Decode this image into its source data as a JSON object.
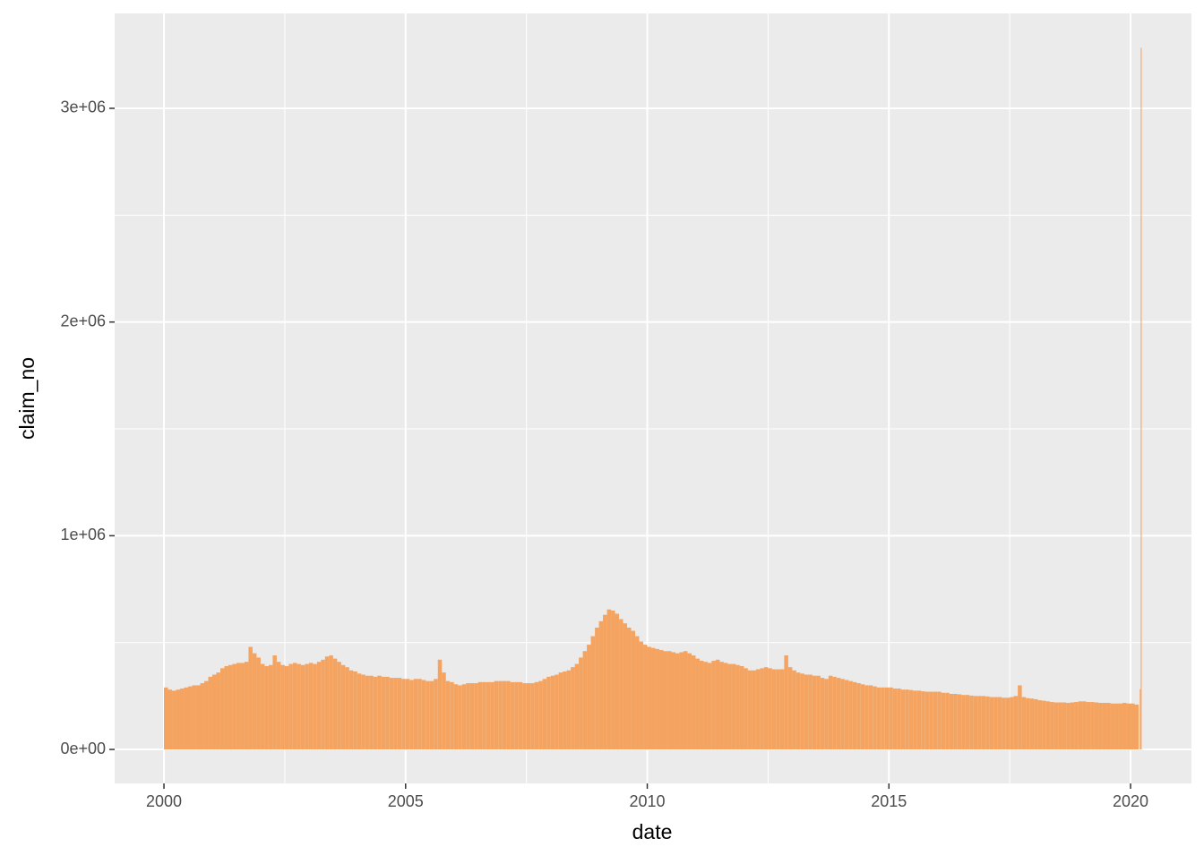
{
  "chart_data": {
    "type": "bar",
    "x_label": "date",
    "y_label": "claim_no",
    "color": "#f4a460",
    "grid": true,
    "xlim": [
      1998.98,
      2021.26
    ],
    "xticks": [
      2000,
      2005,
      2010,
      2015,
      2020
    ],
    "ylim": [
      -159000,
      3444000
    ],
    "yticks": [
      {
        "value": 0,
        "label": "0e+00"
      },
      {
        "value": 1000000,
        "label": "1e+06"
      },
      {
        "value": 2000000,
        "label": "2e+06"
      },
      {
        "value": 3000000,
        "label": "3e+06"
      }
    ],
    "x": [
      2000,
      2000.083,
      2000.167,
      2000.25,
      2000.333,
      2000.417,
      2000.5,
      2000.583,
      2000.667,
      2000.75,
      2000.833,
      2000.917,
      2001,
      2001.083,
      2001.167,
      2001.25,
      2001.333,
      2001.417,
      2001.5,
      2001.583,
      2001.667,
      2001.75,
      2001.833,
      2001.917,
      2002,
      2002.083,
      2002.167,
      2002.25,
      2002.333,
      2002.417,
      2002.5,
      2002.583,
      2002.667,
      2002.75,
      2002.833,
      2002.917,
      2003,
      2003.083,
      2003.167,
      2003.25,
      2003.333,
      2003.417,
      2003.5,
      2003.583,
      2003.667,
      2003.75,
      2003.833,
      2003.917,
      2004,
      2004.083,
      2004.167,
      2004.25,
      2004.333,
      2004.417,
      2004.5,
      2004.583,
      2004.667,
      2004.75,
      2004.833,
      2004.917,
      2005,
      2005.083,
      2005.167,
      2005.25,
      2005.333,
      2005.417,
      2005.5,
      2005.583,
      2005.667,
      2005.75,
      2005.833,
      2005.917,
      2006,
      2006.083,
      2006.167,
      2006.25,
      2006.333,
      2006.417,
      2006.5,
      2006.583,
      2006.667,
      2006.75,
      2006.833,
      2006.917,
      2007,
      2007.083,
      2007.167,
      2007.25,
      2007.333,
      2007.417,
      2007.5,
      2007.583,
      2007.667,
      2007.75,
      2007.833,
      2007.917,
      2008,
      2008.083,
      2008.167,
      2008.25,
      2008.333,
      2008.417,
      2008.5,
      2008.583,
      2008.667,
      2008.75,
      2008.833,
      2008.917,
      2009,
      2009.083,
      2009.167,
      2009.25,
      2009.333,
      2009.417,
      2009.5,
      2009.583,
      2009.667,
      2009.75,
      2009.833,
      2009.917,
      2010,
      2010.083,
      2010.167,
      2010.25,
      2010.333,
      2010.417,
      2010.5,
      2010.583,
      2010.667,
      2010.75,
      2010.833,
      2010.917,
      2011,
      2011.083,
      2011.167,
      2011.25,
      2011.333,
      2011.417,
      2011.5,
      2011.583,
      2011.667,
      2011.75,
      2011.833,
      2011.917,
      2012,
      2012.083,
      2012.167,
      2012.25,
      2012.333,
      2012.417,
      2012.5,
      2012.583,
      2012.667,
      2012.75,
      2012.833,
      2012.917,
      2013,
      2013.083,
      2013.167,
      2013.25,
      2013.333,
      2013.417,
      2013.5,
      2013.583,
      2013.667,
      2013.75,
      2013.833,
      2013.917,
      2014,
      2014.083,
      2014.167,
      2014.25,
      2014.333,
      2014.417,
      2014.5,
      2014.583,
      2014.667,
      2014.75,
      2014.833,
      2014.917,
      2015,
      2015.083,
      2015.167,
      2015.25,
      2015.333,
      2015.417,
      2015.5,
      2015.583,
      2015.667,
      2015.75,
      2015.833,
      2015.917,
      2016,
      2016.083,
      2016.167,
      2016.25,
      2016.333,
      2016.417,
      2016.5,
      2016.583,
      2016.667,
      2016.75,
      2016.833,
      2016.917,
      2017,
      2017.083,
      2017.167,
      2017.25,
      2017.333,
      2017.417,
      2017.5,
      2017.583,
      2017.667,
      2017.75,
      2017.833,
      2017.917,
      2018,
      2018.083,
      2018.167,
      2018.25,
      2018.333,
      2018.417,
      2018.5,
      2018.583,
      2018.667,
      2018.75,
      2018.833,
      2018.917,
      2019,
      2019.083,
      2019.167,
      2019.25,
      2019.333,
      2019.417,
      2019.5,
      2019.583,
      2019.667,
      2019.75,
      2019.833,
      2019.917,
      2020,
      2020.083,
      2020.19,
      2020.21
    ],
    "values": [
      290000,
      280000,
      275000,
      280000,
      285000,
      290000,
      295000,
      300000,
      300000,
      310000,
      320000,
      340000,
      350000,
      360000,
      380000,
      390000,
      395000,
      400000,
      405000,
      405000,
      410000,
      480000,
      450000,
      430000,
      400000,
      390000,
      395000,
      440000,
      410000,
      395000,
      390000,
      400000,
      405000,
      400000,
      395000,
      400000,
      405000,
      400000,
      410000,
      420000,
      435000,
      440000,
      425000,
      410000,
      395000,
      385000,
      370000,
      365000,
      355000,
      350000,
      345000,
      345000,
      340000,
      345000,
      340000,
      340000,
      335000,
      335000,
      335000,
      330000,
      330000,
      325000,
      330000,
      330000,
      325000,
      320000,
      320000,
      330000,
      420000,
      360000,
      320000,
      315000,
      305000,
      300000,
      305000,
      310000,
      310000,
      310000,
      315000,
      315000,
      315000,
      315000,
      320000,
      320000,
      320000,
      320000,
      315000,
      315000,
      315000,
      310000,
      310000,
      310000,
      315000,
      320000,
      330000,
      340000,
      345000,
      350000,
      360000,
      365000,
      370000,
      385000,
      400000,
      430000,
      460000,
      490000,
      530000,
      570000,
      600000,
      630000,
      655000,
      650000,
      635000,
      610000,
      590000,
      570000,
      555000,
      530000,
      505000,
      490000,
      480000,
      475000,
      470000,
      465000,
      460000,
      460000,
      455000,
      450000,
      455000,
      460000,
      450000,
      440000,
      425000,
      415000,
      410000,
      405000,
      415000,
      420000,
      410000,
      405000,
      400000,
      400000,
      395000,
      390000,
      380000,
      370000,
      370000,
      375000,
      380000,
      385000,
      380000,
      375000,
      375000,
      375000,
      440000,
      385000,
      370000,
      360000,
      355000,
      350000,
      350000,
      345000,
      345000,
      335000,
      330000,
      345000,
      340000,
      335000,
      330000,
      325000,
      320000,
      315000,
      310000,
      305000,
      300000,
      300000,
      295000,
      290000,
      290000,
      290000,
      290000,
      285000,
      285000,
      280000,
      280000,
      278000,
      275000,
      275000,
      272000,
      270000,
      270000,
      270000,
      270000,
      265000,
      265000,
      260000,
      260000,
      258000,
      255000,
      255000,
      252000,
      250000,
      250000,
      250000,
      248000,
      245000,
      245000,
      245000,
      242000,
      242000,
      245000,
      250000,
      300000,
      245000,
      240000,
      238000,
      235000,
      230000,
      228000,
      225000,
      222000,
      220000,
      220000,
      220000,
      218000,
      220000,
      222000,
      225000,
      225000,
      222000,
      222000,
      220000,
      218000,
      218000,
      218000,
      215000,
      215000,
      215000,
      218000,
      215000,
      215000,
      210000,
      282000,
      3283000
    ]
  }
}
